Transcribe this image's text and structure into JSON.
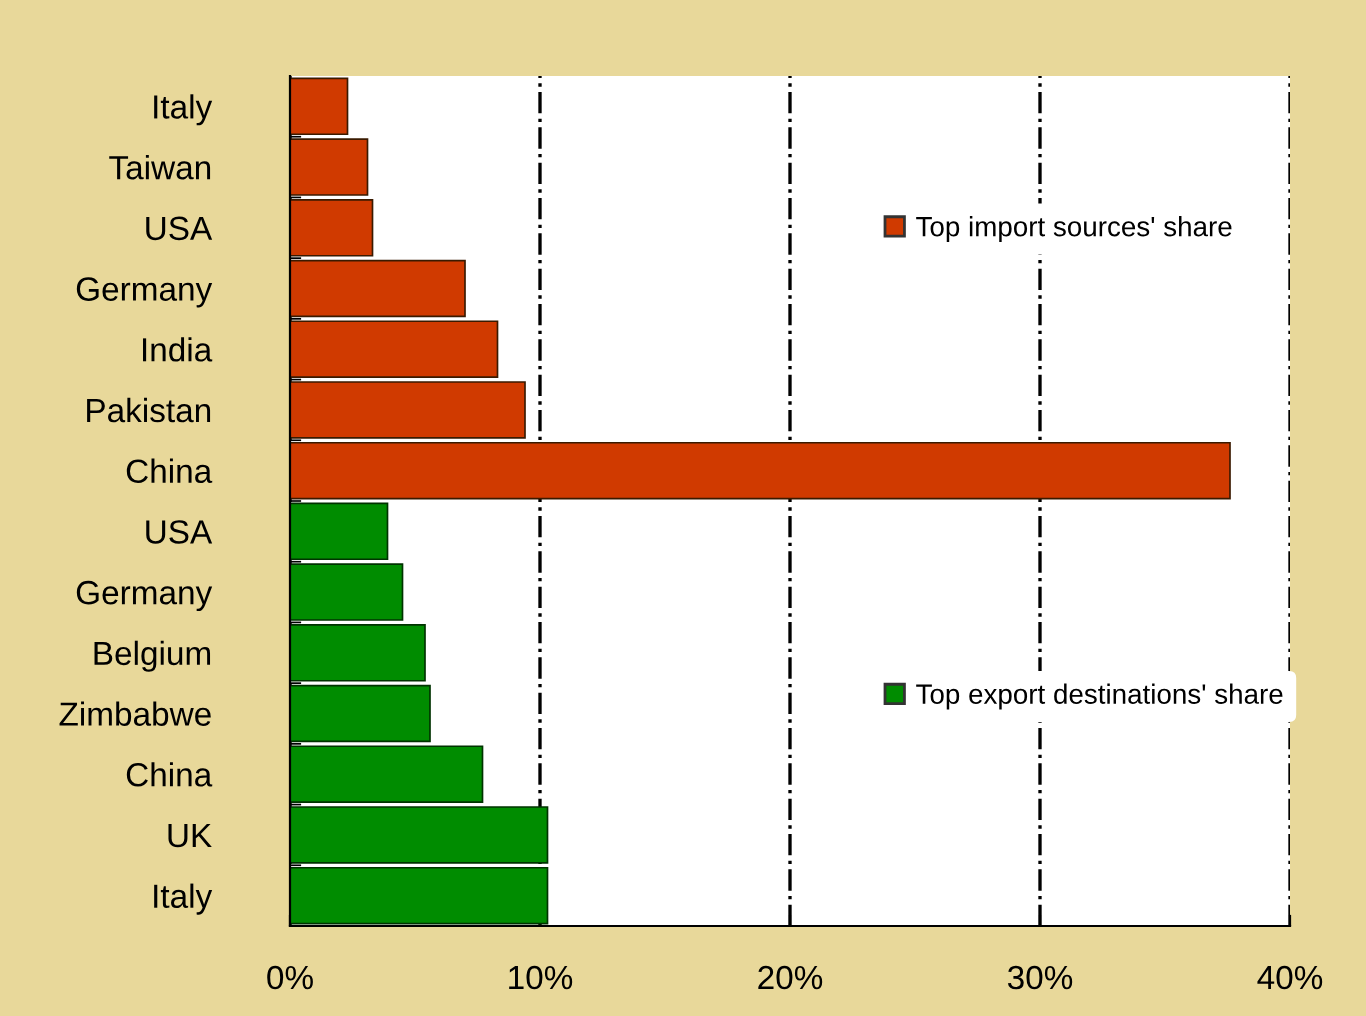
{
  "chart_data": {
    "type": "bar",
    "orientation": "horizontal",
    "categories": [
      "Italy",
      "Taiwan",
      "USA",
      "Germany",
      "India",
      "Pakistan",
      "China",
      "USA",
      "Germany",
      "Belgium",
      "Zimbabwe",
      "China",
      "UK",
      "Italy"
    ],
    "series": [
      {
        "name": "Top import sources' share",
        "color": "#d03a00",
        "values": [
          2.3,
          3.1,
          3.3,
          7.0,
          8.3,
          9.4,
          37.6,
          null,
          null,
          null,
          null,
          null,
          null,
          null
        ]
      },
      {
        "name": "Top export destinations' share",
        "color": "#008c00",
        "values": [
          null,
          null,
          null,
          null,
          null,
          null,
          null,
          3.9,
          4.5,
          5.4,
          5.6,
          7.7,
          10.3,
          10.3
        ]
      }
    ],
    "xlim": [
      0,
      40
    ],
    "xticks": [
      {
        "value": 0,
        "label": "0%"
      },
      {
        "value": 10,
        "label": "10%"
      },
      {
        "value": 20,
        "label": "20%"
      },
      {
        "value": 30,
        "label": "30%"
      },
      {
        "value": 40,
        "label": "40%"
      }
    ],
    "grid": "x",
    "legend": "right"
  }
}
